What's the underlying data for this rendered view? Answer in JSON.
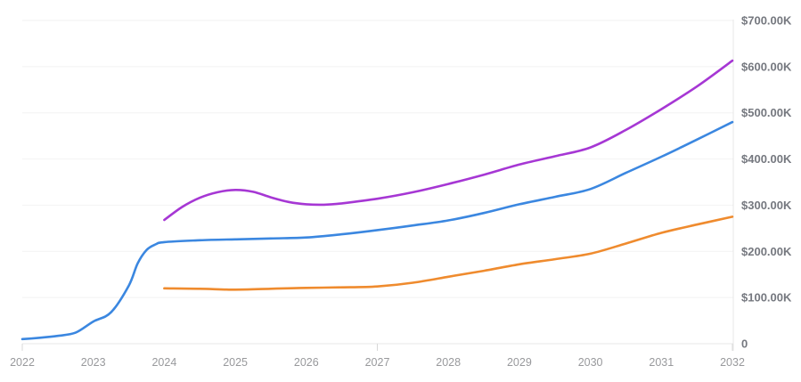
{
  "chart_data": {
    "type": "line",
    "title": "",
    "xlabel": "",
    "ylabel": "",
    "y_unit": "USD thousands",
    "xlim": [
      2022,
      2032
    ],
    "ylim_thousands": [
      0,
      700
    ],
    "grid": true,
    "legend": "none",
    "y_axis_position": "right",
    "x_tick_labels": [
      "2022",
      "2023",
      "2024",
      "2025",
      "2026",
      "2027",
      "2028",
      "2029",
      "2030",
      "2031",
      "2032"
    ],
    "x_tick_years": [
      2022,
      2023,
      2024,
      2025,
      2026,
      2027,
      2028,
      2029,
      2030,
      2031,
      2032
    ],
    "x_major_tick_years": [
      2022,
      2027,
      2032
    ],
    "y_ticks": [
      {
        "label": "$700.00K",
        "value": 700
      },
      {
        "label": "$600.00K",
        "value": 600
      },
      {
        "label": "$500.00K",
        "value": 500
      },
      {
        "label": "$400.00K",
        "value": 400
      },
      {
        "label": "$300.00K",
        "value": 300
      },
      {
        "label": "$200.00K",
        "value": 200
      },
      {
        "label": "$100.00K",
        "value": 100
      },
      {
        "label": "0",
        "value": 0
      }
    ],
    "series": [
      {
        "name": "blue-series",
        "color": "#3b87e0",
        "x": [
          2022,
          2022.25,
          2022.5,
          2022.75,
          2023,
          2023.25,
          2023.5,
          2023.625,
          2023.75,
          2023.875,
          2024,
          2024.5,
          2025,
          2025.5,
          2026,
          2026.5,
          2027,
          2027.5,
          2028,
          2028.5,
          2029,
          2029.5,
          2030,
          2030.5,
          2031,
          2031.5,
          2032
        ],
        "y_thousands": [
          10,
          13,
          17,
          24,
          48,
          68,
          126,
          174,
          203,
          215,
          220,
          224,
          226,
          228,
          230,
          237,
          246,
          256,
          267,
          283,
          302,
          318,
          335,
          370,
          405,
          442,
          480
        ]
      },
      {
        "name": "orange-series",
        "color": "#ef8b2e",
        "x": [
          2024,
          2024.5,
          2025,
          2025.5,
          2026,
          2026.5,
          2027,
          2027.5,
          2028,
          2028.5,
          2029,
          2029.5,
          2030,
          2030.5,
          2031,
          2031.5,
          2032
        ],
        "y_thousands": [
          120,
          119,
          117,
          119,
          121,
          122,
          124,
          132,
          145,
          158,
          172,
          183,
          195,
          217,
          240,
          258,
          275
        ]
      },
      {
        "name": "purple-series",
        "color": "#a637d4",
        "x": [
          2024,
          2024.25,
          2024.5,
          2024.75,
          2025,
          2025.25,
          2025.5,
          2025.75,
          2026,
          2026.25,
          2026.5,
          2027,
          2027.5,
          2028,
          2028.5,
          2029,
          2029.5,
          2030,
          2030.5,
          2031,
          2031.5,
          2032
        ],
        "y_thousands": [
          268,
          296,
          316,
          328,
          333,
          329,
          317,
          307,
          302,
          301,
          304,
          314,
          328,
          346,
          366,
          388,
          406,
          425,
          463,
          508,
          557,
          613
        ]
      }
    ],
    "style_colors": {
      "gridline": "#f2f2f2",
      "axis_line": "#e7e7e7",
      "tick_mark": "#d8d8d8",
      "x_label": "#98999c",
      "y_label": "#75787f",
      "background": "#ffffff"
    }
  }
}
